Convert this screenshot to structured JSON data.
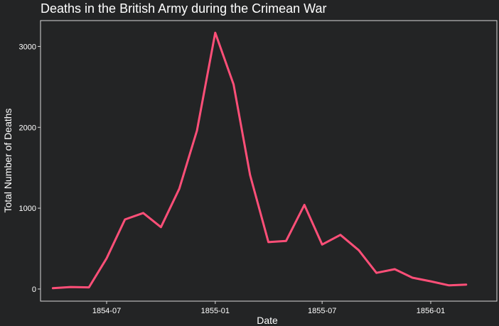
{
  "chart_data": {
    "type": "line",
    "title": "Deaths in the British Army during the Crimean War",
    "xlabel": "Date",
    "ylabel": "Total Number of Deaths",
    "x": [
      "1854-04",
      "1854-05",
      "1854-06",
      "1854-07",
      "1854-08",
      "1854-09",
      "1854-10",
      "1854-11",
      "1854-12",
      "1855-01",
      "1855-02",
      "1855-03",
      "1855-04",
      "1855-05",
      "1855-06",
      "1855-07",
      "1855-08",
      "1855-09",
      "1855-10",
      "1855-11",
      "1855-12",
      "1856-01",
      "1856-02",
      "1856-03"
    ],
    "series": [
      {
        "values": [
          10,
          25,
          20,
          380,
          860,
          940,
          765,
          1240,
          1960,
          3170,
          2530,
          1410,
          580,
          595,
          1040,
          550,
          670,
          480,
          200,
          245,
          140,
          95,
          45,
          55
        ]
      }
    ],
    "ylim": [
      -150,
      3320
    ],
    "yticks": [
      0,
      1000,
      2000,
      3000
    ],
    "xticks": [
      "1854-07",
      "1855-01",
      "1855-07",
      "1856-01"
    ],
    "xlim": [
      "1854-03-11",
      "1856-04-22"
    ],
    "grid": false,
    "colors": {
      "background": "#232425",
      "line": "#ff4f78",
      "axis": "#d9d9d9",
      "text": "#ffffff"
    }
  }
}
